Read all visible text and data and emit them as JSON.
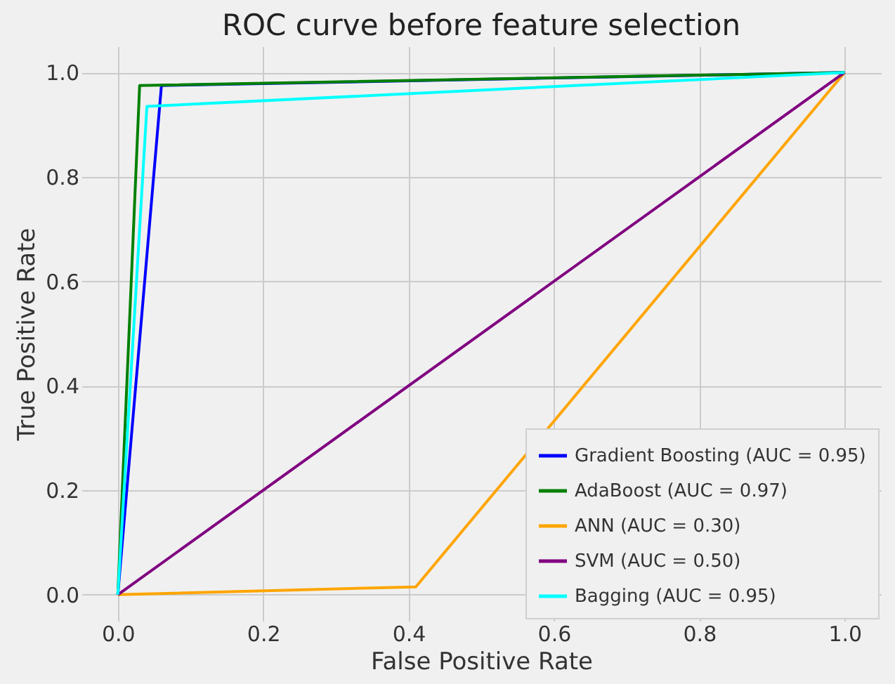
{
  "chart_data": {
    "type": "line",
    "title": "ROC curve before feature selection",
    "xlabel": "False Positive Rate",
    "ylabel": "True Positive Rate",
    "series": [
      {
        "name": "Gradient Boosting (AUC = 0.95)",
        "color": "#0000ff",
        "x": [
          0,
          0.06,
          1
        ],
        "values": [
          0,
          0.975,
          1
        ]
      },
      {
        "name": "AdaBoost (AUC = 0.97)",
        "color": "#008000",
        "x": [
          0,
          0.03,
          1
        ],
        "values": [
          0,
          0.975,
          1
        ]
      },
      {
        "name": "ANN (AUC = 0.30)",
        "color": "#ffa500",
        "x": [
          0,
          0.41,
          1
        ],
        "values": [
          0,
          0.015,
          1
        ]
      },
      {
        "name": "SVM (AUC = 0.50)",
        "color": "#800080",
        "x": [
          0,
          1
        ],
        "values": [
          0,
          1
        ]
      },
      {
        "name": "Bagging (AUC = 0.95)",
        "color": "#00ffff",
        "x": [
          0,
          0.04,
          1
        ],
        "values": [
          0,
          0.935,
          1
        ]
      }
    ],
    "xlim": [
      -0.05,
      1.05
    ],
    "ylim": [
      -0.05,
      1.05
    ],
    "xticks": [
      {
        "value": 0,
        "label": "0.0"
      },
      0.2,
      0.4,
      0.6,
      0.8,
      {
        "value": 1,
        "label": "1.0"
      }
    ],
    "yticks": [
      {
        "value": 0,
        "label": "0.0"
      },
      0.2,
      0.4,
      0.6,
      0.8,
      {
        "value": 1,
        "label": "1.0"
      }
    ],
    "grid": true,
    "legend": "bottom right",
    "line_style": "solid",
    "marker": "none"
  }
}
